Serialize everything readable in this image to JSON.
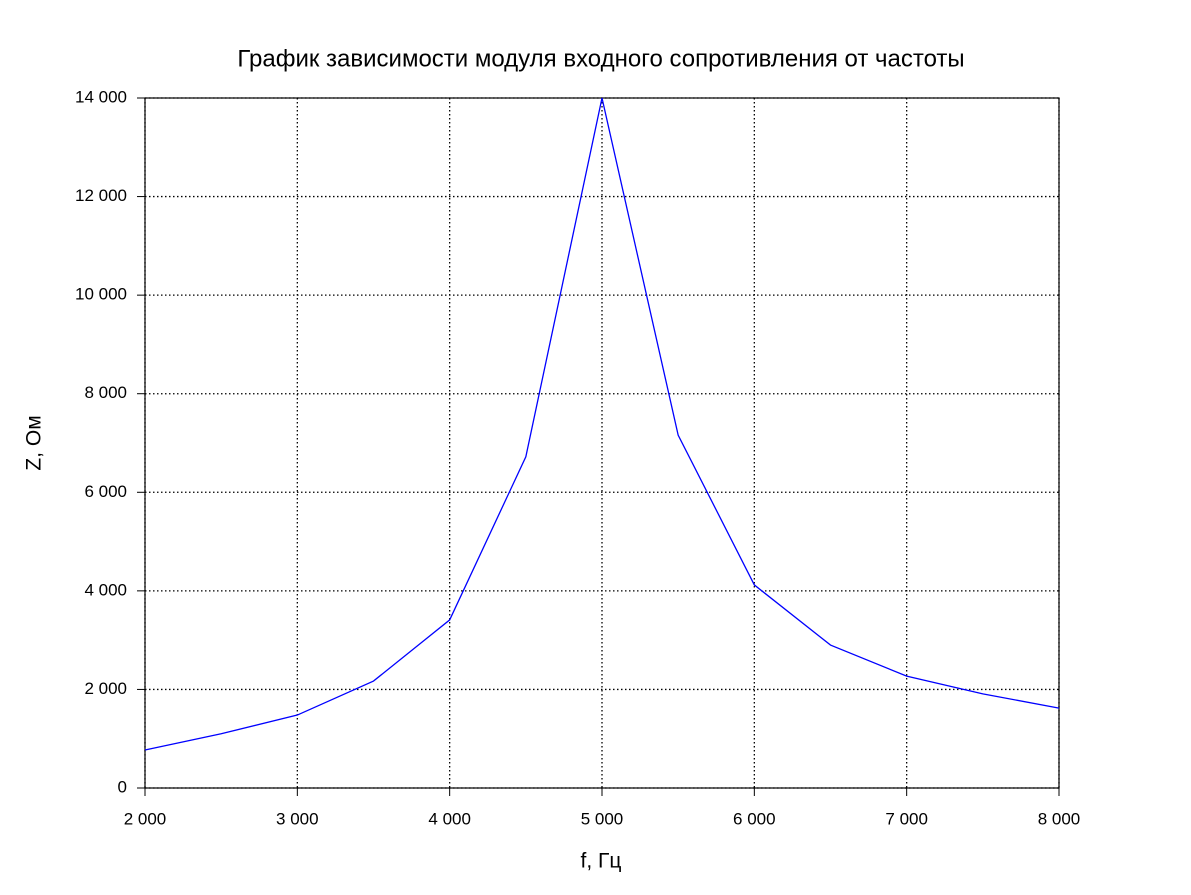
{
  "chart_data": {
    "type": "line",
    "title": "График зависимости модуля входного сопротивления от частоты",
    "x_label": "f, Гц",
    "y_label": "Z, Ом",
    "x": [
      2000,
      2500,
      3000,
      3500,
      4000,
      4500,
      5000,
      5500,
      6000,
      6500,
      7000,
      7500,
      8000
    ],
    "values": [
      770,
      1100,
      1480,
      2170,
      3410,
      6720,
      14000,
      7160,
      4120,
      2900,
      2270,
      1910,
      1620
    ],
    "color": "#0000ff",
    "xlim": [
      2000,
      8000
    ],
    "xticks": [
      {
        "value": 2000,
        "label": "2 000"
      },
      {
        "value": 3000,
        "label": "3 000"
      },
      {
        "value": 4000,
        "label": "4 000"
      },
      {
        "value": 5000,
        "label": "5 000"
      },
      {
        "value": 6000,
        "label": "6 000"
      },
      {
        "value": 7000,
        "label": "7 000"
      },
      {
        "value": 8000,
        "label": "8 000"
      }
    ],
    "ylim": [
      0,
      14000
    ],
    "yticks": [
      0,
      {
        "value": 2000,
        "label": "2 000"
      },
      {
        "value": 4000,
        "label": "4 000"
      },
      {
        "value": 6000,
        "label": "6 000"
      },
      {
        "value": 8000,
        "label": "8 000"
      },
      {
        "value": 10000,
        "label": "10 000"
      },
      {
        "value": 12000,
        "label": "12 000"
      },
      {
        "value": 14000,
        "label": "14 000"
      }
    ],
    "grid": true
  }
}
